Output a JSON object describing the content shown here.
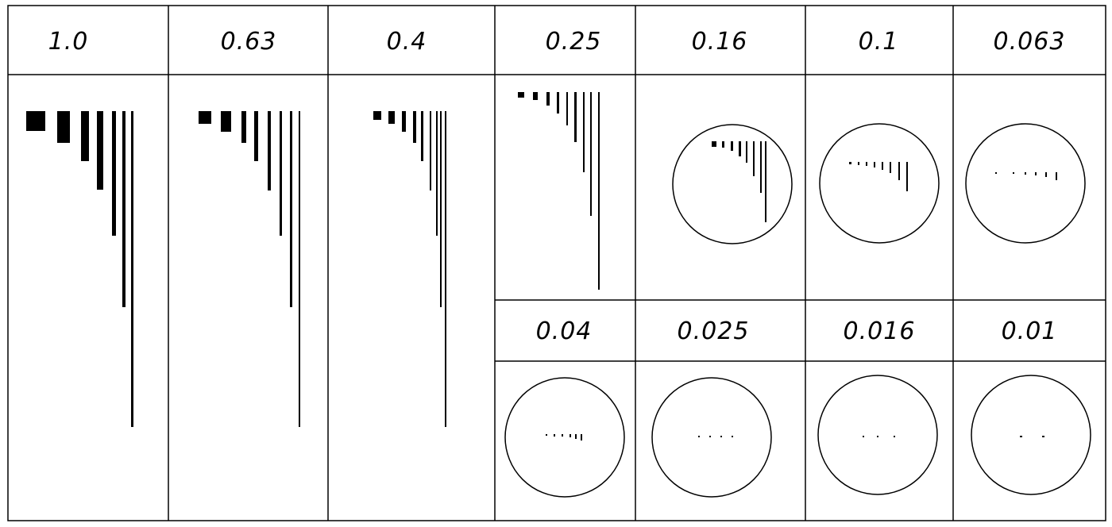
{
  "diagram": {
    "top_row_labels": [
      "1.0",
      "0.63",
      "0.4",
      "0.25",
      "0.16",
      "0.1",
      "0.063"
    ],
    "bottom_row_labels": [
      "0.04",
      "0.025",
      "0.016",
      "0.01"
    ],
    "ink_color": "#000000",
    "background": "#ffffff"
  }
}
